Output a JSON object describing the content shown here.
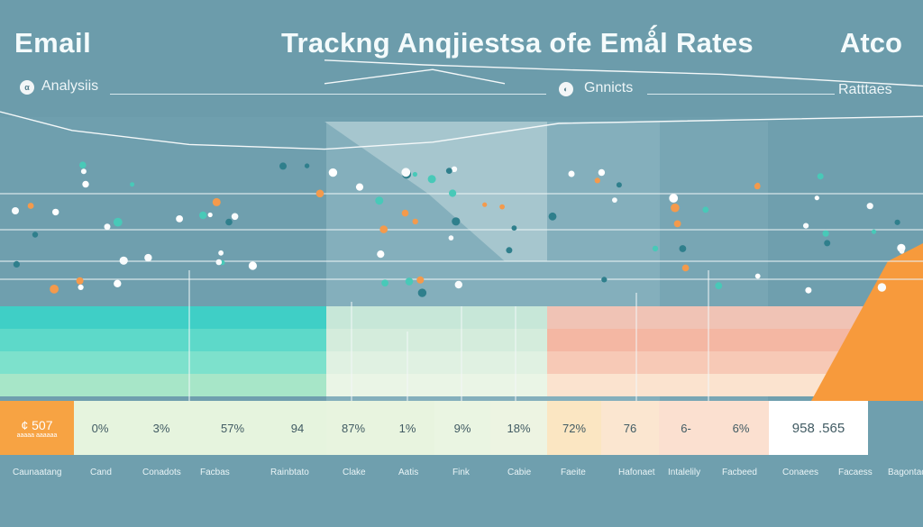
{
  "header": {
    "title_left": "Email",
    "title_main": "Trackng Anqjiestsa ofe Emǻl Rates",
    "title_right": "Atco",
    "sub_left": "Analysiis",
    "sub_mid": "Gnnicts",
    "sub_right": "Ratttaes",
    "badge_left": "α",
    "badge_mid": "◐"
  },
  "colors": {
    "background": "#6f9fae",
    "teal": "#3ccfc4",
    "mint": "#a7e6c8",
    "orange": "#f79a3c",
    "salmon": "#f6a890"
  },
  "chart_data": {
    "type": "line",
    "title": "",
    "series": [
      {
        "name": "",
        "points": [
          [
            0,
            60
          ],
          [
            80,
            52
          ],
          [
            210,
            46
          ],
          [
            360,
            44
          ],
          [
            480,
            47
          ],
          [
            620,
            55
          ],
          [
            1024,
            58
          ]
        ]
      },
      {
        "name": "",
        "points": [
          [
            360,
            82
          ],
          [
            470,
            80
          ],
          [
            620,
            78
          ],
          [
            800,
            76
          ],
          [
            1024,
            71
          ]
        ]
      },
      {
        "name": "",
        "points": [
          [
            360,
            72
          ],
          [
            480,
            78
          ],
          [
            560,
            72
          ]
        ]
      }
    ],
    "value_cells": [
      "¢ 507",
      "0%",
      "3%",
      "57%",
      "94",
      "87%",
      "1%",
      "9%",
      "18%",
      "72%",
      "76",
      "6-",
      "6%",
      "958 .565"
    ],
    "value_cell_sub": "aaaaa aaaaaa",
    "labels": [
      "Caunaatang",
      "Cand",
      "Conadots",
      "Facbas",
      "Rainbtato",
      "Clake",
      "Aatis",
      "Fink",
      "Cabie",
      "Faeite",
      "Hafonaet",
      "Intalelily",
      "Facbeed",
      "Conaees",
      "Facaess",
      "Bagontad"
    ]
  }
}
